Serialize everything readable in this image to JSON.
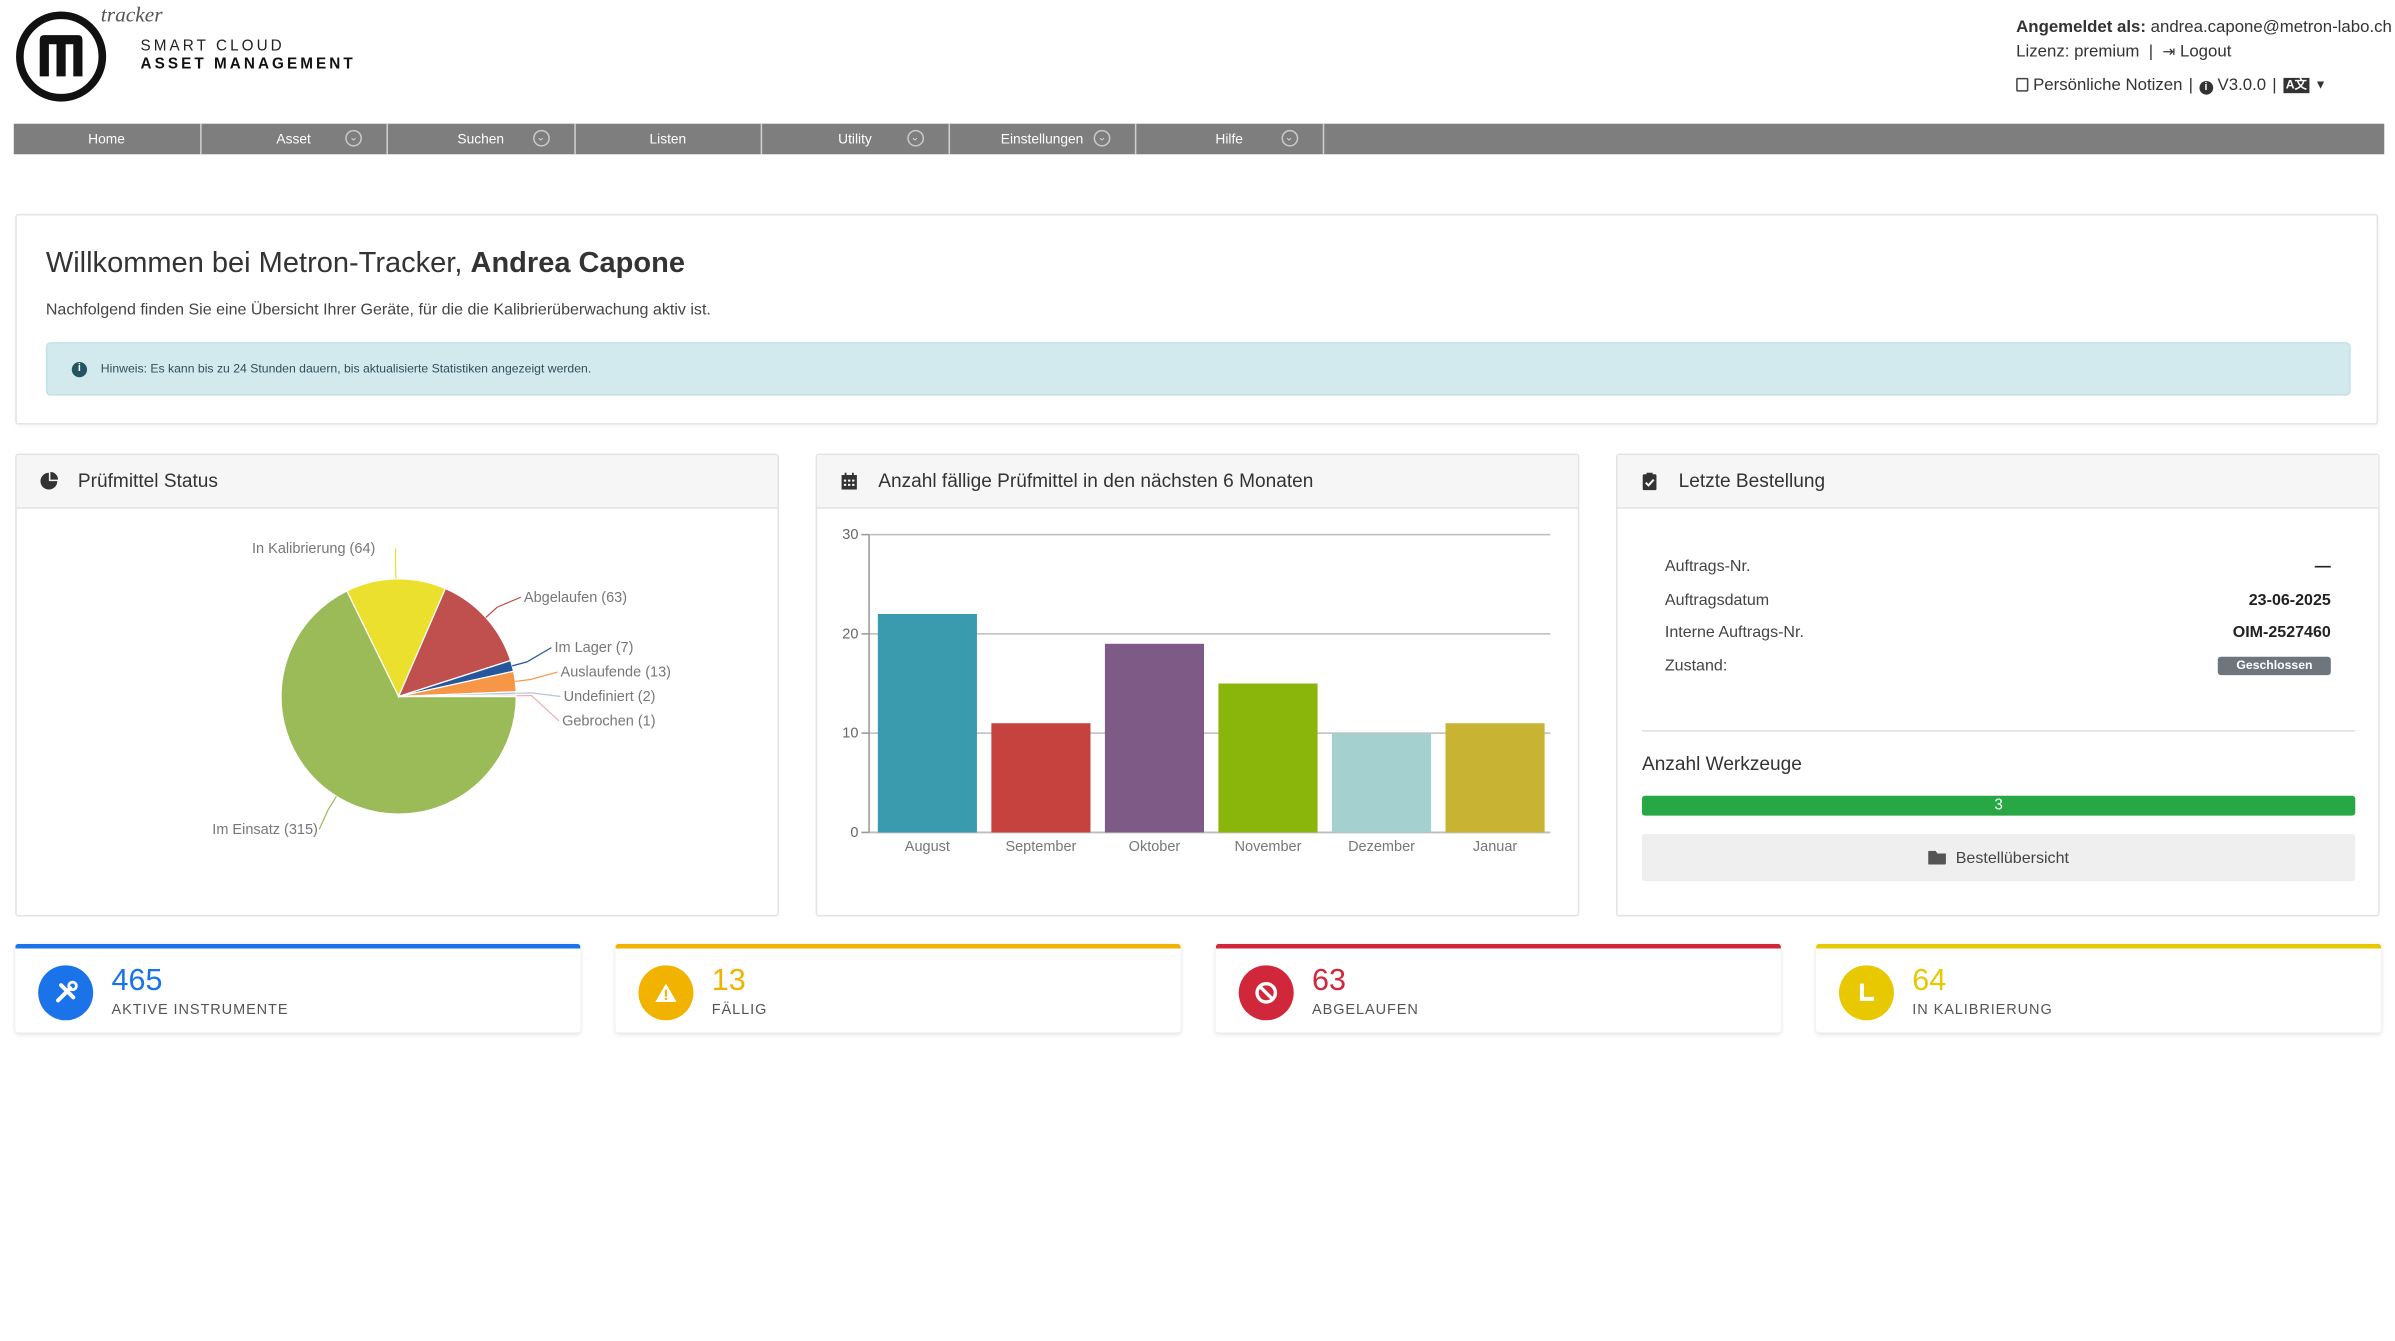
{
  "brand": {
    "tracker": "tracker",
    "line1": "SMART CLOUD",
    "line2": "ASSET MANAGEMENT"
  },
  "user": {
    "logged_label": "Angemeldet als:",
    "email": "andrea.capone@metron-labo.ch",
    "license": "Lizenz: premium",
    "logout": "Logout",
    "notes": "Persönliche Notizen",
    "version": "V3.0.0",
    "lang": "A文"
  },
  "nav": [
    {
      "label": "Home",
      "dropdown": false
    },
    {
      "label": "Asset",
      "dropdown": true
    },
    {
      "label": "Suchen",
      "dropdown": true
    },
    {
      "label": "Listen",
      "dropdown": false
    },
    {
      "label": "Utility",
      "dropdown": true
    },
    {
      "label": "Einstellungen",
      "dropdown": true
    },
    {
      "label": "Hilfe",
      "dropdown": true
    }
  ],
  "welcome": {
    "title_prefix": "Willkommen bei Metron-Tracker, ",
    "name": "Andrea Capone",
    "subtitle": "Nachfolgend finden Sie eine Übersicht Ihrer Geräte, für die die Kalibrierüberwachung aktiv ist.",
    "alert": "Hinweis: Es kann bis zu 24 Stunden dauern, bis aktualisierte Statistiken angezeigt werden."
  },
  "cards": {
    "status_title": "Prüfmittel Status",
    "due_title": "Anzahl fällige Prüfmittel in den nächsten 6 Monaten",
    "order_title": "Letzte Bestellung"
  },
  "chart_data": [
    {
      "type": "pie",
      "title": "Prüfmittel Status",
      "slices": [
        {
          "label": "Im Einsatz (315)",
          "value": 315,
          "color": "#9bbb59"
        },
        {
          "label": "In Kalibrierung (64)",
          "value": 64,
          "color": "#ebe02d"
        },
        {
          "label": "Abgelaufen (63)",
          "value": 63,
          "color": "#c0504d"
        },
        {
          "label": "Im Lager (7)",
          "value": 7,
          "color": "#24579b"
        },
        {
          "label": "Auslaufende (13)",
          "value": 13,
          "color": "#f79646"
        },
        {
          "label": "Undefiniert (2)",
          "value": 2,
          "color": "#b9c5da"
        },
        {
          "label": "Gebrochen (1)",
          "value": 1,
          "color": "#e8b0b0"
        }
      ]
    },
    {
      "type": "bar",
      "title": "Anzahl fällige Prüfmittel in den nächsten 6 Monaten",
      "categories": [
        "August",
        "September",
        "Oktober",
        "November",
        "Dezember",
        "Januar"
      ],
      "values": [
        22,
        11,
        19,
        15,
        10,
        11
      ],
      "colors": [
        "#3a9bae",
        "#c5423f",
        "#7e5a87",
        "#8ab50b",
        "#a4d0cf",
        "#c8b432"
      ],
      "ylim": [
        0,
        30
      ],
      "yticks": [
        "0",
        "10",
        "20",
        "30"
      ]
    }
  ],
  "order": {
    "rows": [
      {
        "label": "Auftrags-Nr.",
        "value": "—"
      },
      {
        "label": "Auftragsdatum",
        "value": "23-06-2025"
      },
      {
        "label": "Interne Auftrags-Nr.",
        "value": "OIM-2527460"
      },
      {
        "label": "Zustand:",
        "value": "Geschlossen"
      }
    ],
    "werkzeuge_title": "Anzahl Werkzeuge",
    "werkzeuge_count": "3",
    "werkzeuge_fraction": 1.0,
    "overview_button": "Bestellübersicht"
  },
  "stats": [
    {
      "number": "465",
      "label": "AKTIVE INSTRUMENTE",
      "color": "#1a73e8",
      "icon": "tools-icon"
    },
    {
      "number": "13",
      "label": "FÄLLIG",
      "color": "#f2b200",
      "icon": "warning-icon"
    },
    {
      "number": "63",
      "label": "ABGELAUFEN",
      "color": "#d0283a",
      "icon": "ban-icon"
    },
    {
      "number": "64",
      "label": "IN KALIBRIERUNG",
      "color": "#e8c800",
      "icon": "clock-icon"
    }
  ]
}
